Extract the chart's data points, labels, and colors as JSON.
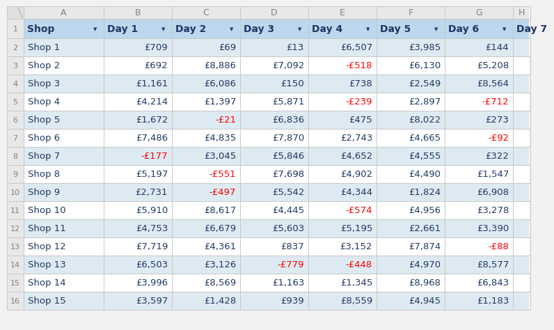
{
  "headers": [
    "Shop",
    "Day 1",
    "Day 2",
    "Day 3",
    "Day 4",
    "Day 5",
    "Day 6",
    "Day 7"
  ],
  "rows": [
    [
      "Shop 1",
      709,
      69,
      13,
      6507,
      3985,
      144,
      null
    ],
    [
      "Shop 2",
      692,
      8886,
      7092,
      -518,
      6130,
      5208,
      null
    ],
    [
      "Shop 3",
      1161,
      6086,
      150,
      738,
      2549,
      8564,
      null
    ],
    [
      "Shop 4",
      4214,
      1397,
      5871,
      -239,
      2897,
      -712,
      null
    ],
    [
      "Shop 5",
      1672,
      -21,
      6836,
      475,
      8022,
      273,
      null
    ],
    [
      "Shop 6",
      7486,
      4835,
      7870,
      2743,
      4665,
      -92,
      null
    ],
    [
      "Shop 7",
      -177,
      3045,
      5846,
      4652,
      4555,
      322,
      null
    ],
    [
      "Shop 8",
      5197,
      -551,
      7698,
      4902,
      4490,
      1547,
      null
    ],
    [
      "Shop 9",
      2731,
      -497,
      5542,
      4344,
      1824,
      6908,
      null
    ],
    [
      "Shop 10",
      5910,
      8617,
      4445,
      -574,
      4956,
      3278,
      null
    ],
    [
      "Shop 11",
      4753,
      6679,
      5603,
      5195,
      2661,
      3390,
      null
    ],
    [
      "Shop 12",
      7719,
      4361,
      837,
      3152,
      7874,
      -88,
      null
    ],
    [
      "Shop 13",
      6503,
      3126,
      -779,
      -448,
      4970,
      8577,
      null
    ],
    [
      "Shop 14",
      3996,
      8569,
      1163,
      1345,
      8968,
      6843,
      null
    ],
    [
      "Shop 15",
      3597,
      1428,
      939,
      8559,
      4945,
      1183,
      null
    ]
  ],
  "col_letters": [
    "A",
    "B",
    "C",
    "D",
    "E",
    "F",
    "G",
    "H"
  ],
  "header_bg": "#BDD7EE",
  "row_bg_blue": "#DEEAF1",
  "row_bg_white": "#FFFFFF",
  "header_text_color": "#1F3864",
  "pos_text_color": "#1F3864",
  "neg_text_color": "#FF0000",
  "row_num_bg": "#E8E8E8",
  "row_num_color": "#808080",
  "col_hdr_bg": "#E8E8E8",
  "col_hdr_color": "#808080",
  "corner_bg": "#E0E0E0",
  "border_color": "#C8C8C8",
  "title_fontsize": 10,
  "cell_fontsize": 9.5,
  "hdr_fontsize": 9,
  "rn_fontsize": 8
}
